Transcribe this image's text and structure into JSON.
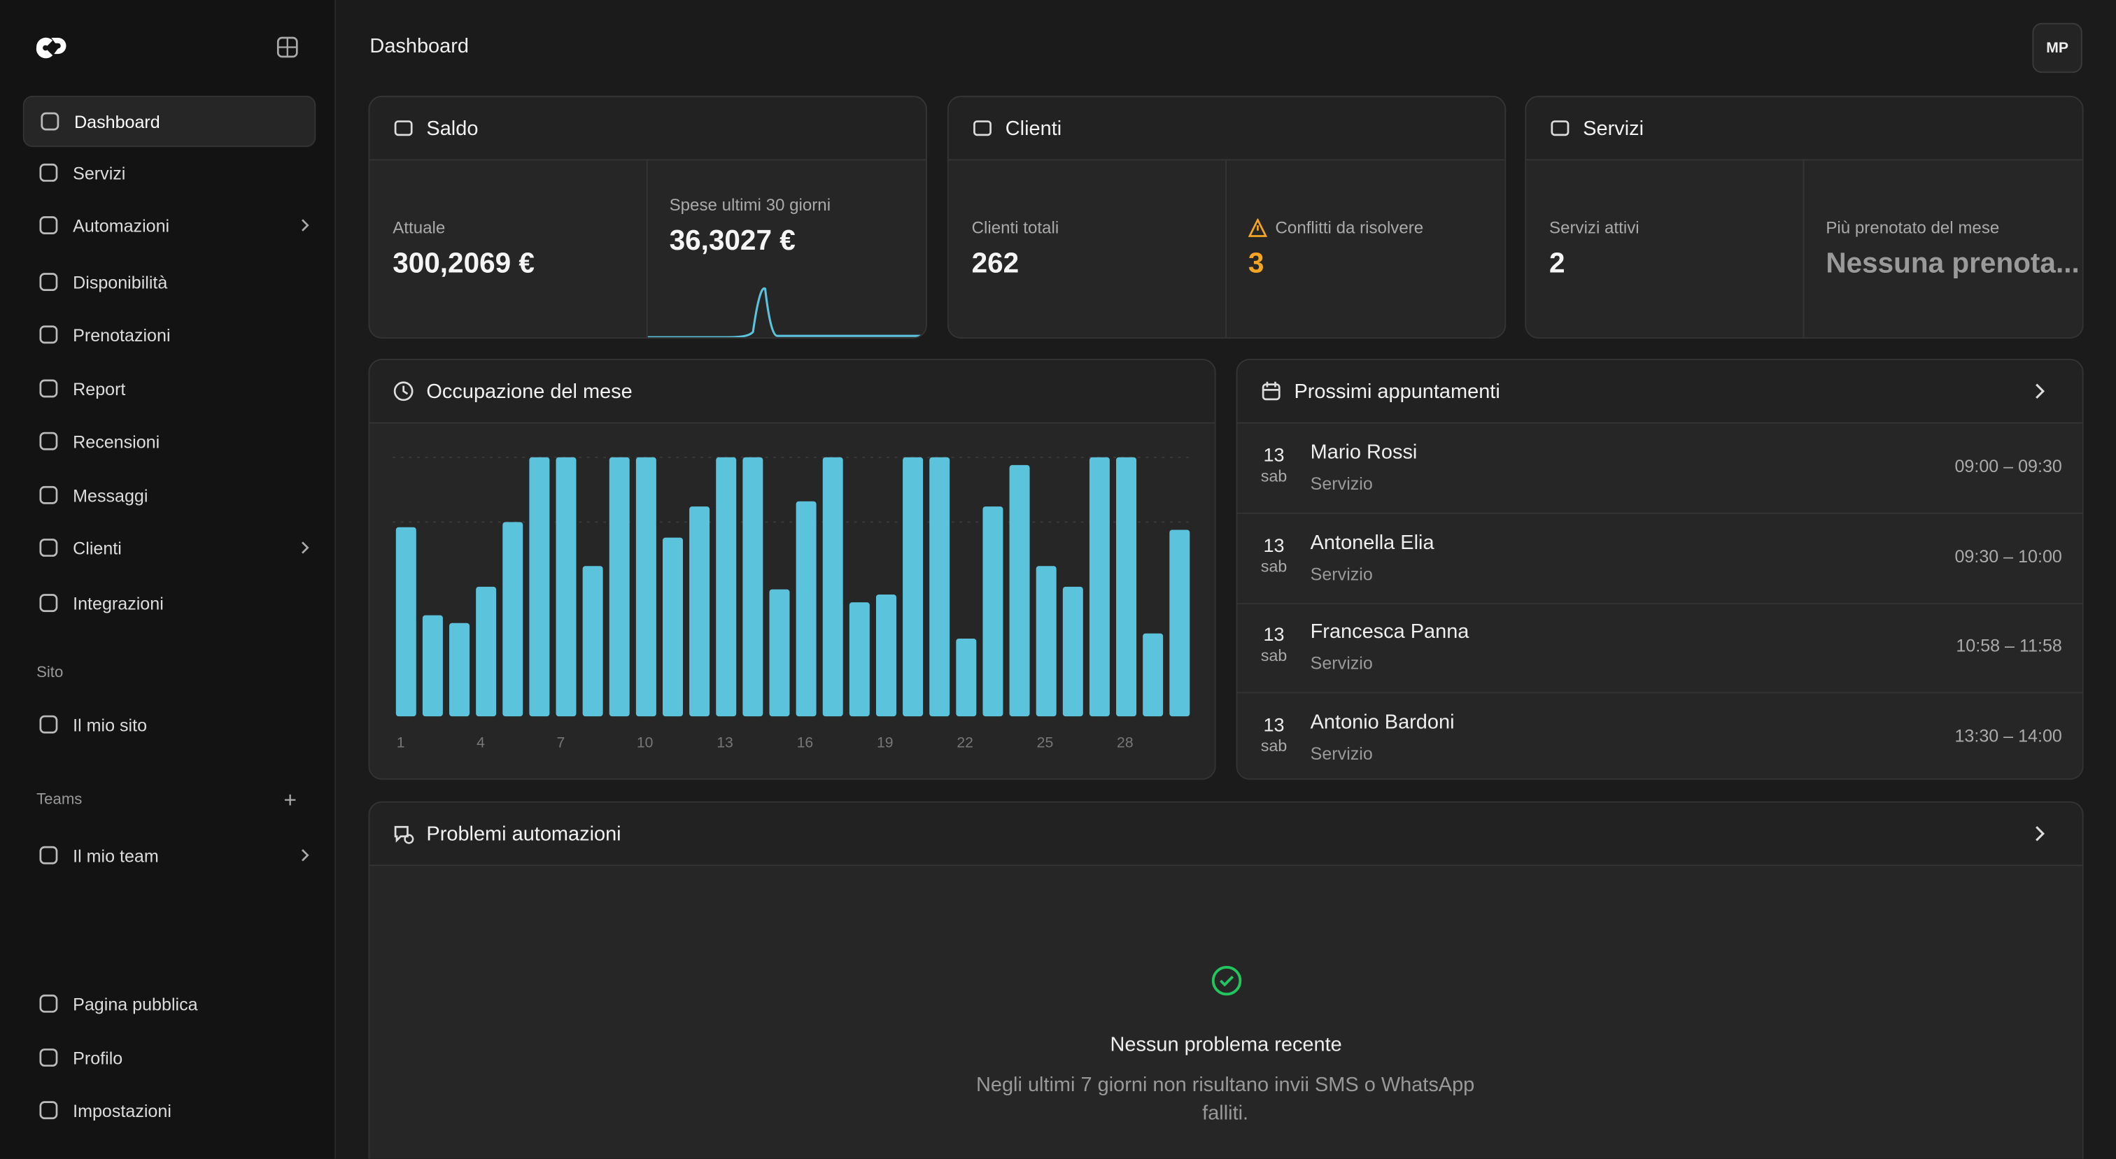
{
  "header": {
    "title": "Dashboard",
    "avatar": "MP"
  },
  "sidebar": {
    "nav": [
      "Dashboard",
      "Servizi",
      "Automazioni",
      "Disponibilità",
      "Prenotazioni",
      "Report",
      "Recensioni",
      "Messaggi",
      "Clienti",
      "Integrazioni"
    ],
    "site_section": "Sito",
    "site_items": [
      "Il mio sito"
    ],
    "teams_section": "Teams",
    "team_items": [
      "Il mio team"
    ],
    "footer": [
      "Pagina pubblica",
      "Profilo",
      "Impostazioni"
    ]
  },
  "cards": {
    "saldo": {
      "title": "Saldo",
      "current_label": "Attuale",
      "current_value": "300,2069 €",
      "spend_label": "Spese ultimi 30 giorni",
      "spend_value": "36,3027 €"
    },
    "clienti": {
      "title": "Clienti",
      "total_label": "Clienti totali",
      "total_value": "262",
      "conflicts_label": "Conflitti da risolvere",
      "conflicts_value": "3"
    },
    "servizi": {
      "title": "Servizi",
      "active_label": "Servizi attivi",
      "active_value": "2",
      "top_label": "Più prenotato del mese",
      "top_value": "Nessuna prenota..."
    }
  },
  "chart_data": {
    "type": "bar",
    "title": "Occupazione del mese",
    "color": "#5bc3dc",
    "ylim": [
      0,
      100
    ],
    "categories": [
      "1",
      null,
      null,
      "4",
      null,
      null,
      "7",
      null,
      null,
      "10",
      null,
      null,
      "13",
      null,
      null,
      "16",
      null,
      null,
      "19",
      null,
      null,
      "22",
      null,
      null,
      "25",
      null,
      null,
      "28",
      null,
      null
    ],
    "values": [
      73,
      39,
      36,
      50,
      75,
      100,
      100,
      58,
      100,
      100,
      69,
      81,
      100,
      100,
      49,
      83,
      100,
      44,
      47,
      100,
      100,
      30,
      81,
      97,
      58,
      50,
      100,
      100,
      32,
      72
    ]
  },
  "appointments": {
    "title": "Prossimi appuntamenti",
    "rows": [
      {
        "day": "13",
        "weekday": "sab",
        "name": "Mario Rossi",
        "service": "Servizio",
        "time": "09:00 – 09:30"
      },
      {
        "day": "13",
        "weekday": "sab",
        "name": "Antonella Elia",
        "service": "Servizio",
        "time": "09:30 – 10:00"
      },
      {
        "day": "13",
        "weekday": "sab",
        "name": "Francesca Panna",
        "service": "Servizio",
        "time": "10:58 – 11:58"
      },
      {
        "day": "13",
        "weekday": "sab",
        "name": "Antonio Bardoni",
        "service": "Servizio",
        "time": "13:30 – 14:00"
      }
    ]
  },
  "problems": {
    "title": "Problemi automazioni",
    "empty_title": "Nessun problema recente",
    "empty_text": "Negli ultimi 7 giorni non risultano invii SMS o WhatsApp falliti."
  }
}
